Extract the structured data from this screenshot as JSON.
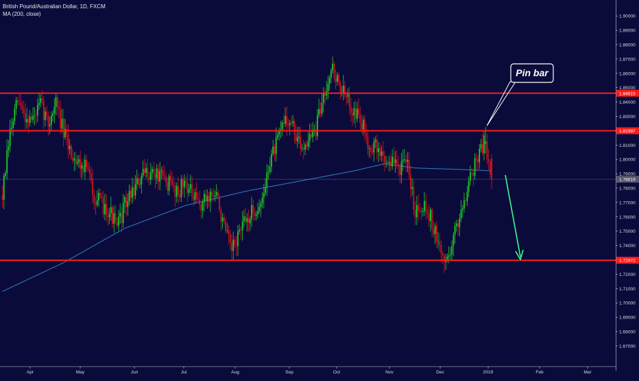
{
  "legend": {
    "symbol": "British Pound/Australian Dollar, 1D, FXCM",
    "indicator": "MA (200, close)"
  },
  "annotation": {
    "callout": "Pin bar"
  },
  "colors": {
    "background": "#0b0b3b",
    "up": "#21d624",
    "down": "#e0141a",
    "level": "#ff1a1a",
    "ma": "#2f7fc6",
    "arrow": "#3dff8a",
    "axis_text": "#d8d8e0"
  },
  "chart_data": {
    "type": "candlestick",
    "title": "British Pound/Australian Dollar, 1D, FXCM",
    "ylim": [
      1.662,
      1.908
    ],
    "y_ticks": [
      "1.90000",
      "1.89000",
      "1.88000",
      "1.87000",
      "1.86000",
      "1.85000",
      "1.84000",
      "1.83000",
      "1.82000",
      "1.81000",
      "1.80000",
      "1.79000",
      "1.78000",
      "1.77000",
      "1.76000",
      "1.75000",
      "1.74000",
      "1.73000",
      "1.72000",
      "1.71000",
      "1.70000",
      "1.69000",
      "1.68000",
      "1.67000"
    ],
    "x_ticks": [
      "Apr",
      "May",
      "Jun",
      "Jul",
      "Aug",
      "Sep",
      "Oct",
      "Nov",
      "Dec",
      "2019",
      "Feb",
      "Mar"
    ],
    "levels": [
      {
        "label": "1.84615",
        "value": 1.84615
      },
      {
        "label": "1.81997",
        "value": 1.81997
      },
      {
        "label": "1.72972",
        "value": 1.72972
      }
    ],
    "current_price": {
      "label": "1.78619",
      "value": 1.78619
    },
    "price_anchors": [
      [
        0,
        1.775
      ],
      [
        5,
        1.818
      ],
      [
        10,
        1.84
      ],
      [
        15,
        1.83
      ],
      [
        20,
        1.828
      ],
      [
        25,
        1.838
      ],
      [
        30,
        1.825
      ],
      [
        35,
        1.84
      ],
      [
        40,
        1.818
      ],
      [
        45,
        1.805
      ],
      [
        50,
        1.798
      ],
      [
        55,
        1.795
      ],
      [
        60,
        1.775
      ],
      [
        65,
        1.768
      ],
      [
        70,
        1.765
      ],
      [
        75,
        1.752
      ],
      [
        80,
        1.768
      ],
      [
        85,
        1.778
      ],
      [
        90,
        1.785
      ],
      [
        95,
        1.792
      ],
      [
        100,
        1.79
      ],
      [
        105,
        1.786
      ],
      [
        110,
        1.782
      ],
      [
        115,
        1.778
      ],
      [
        120,
        1.785
      ],
      [
        125,
        1.772
      ],
      [
        130,
        1.768
      ],
      [
        135,
        1.775
      ],
      [
        140,
        1.775
      ],
      [
        145,
        1.752
      ],
      [
        150,
        1.735
      ],
      [
        155,
        1.75
      ],
      [
        160,
        1.758
      ],
      [
        165,
        1.765
      ],
      [
        170,
        1.77
      ],
      [
        175,
        1.8
      ],
      [
        180,
        1.812
      ],
      [
        185,
        1.83
      ],
      [
        190,
        1.822
      ],
      [
        195,
        1.808
      ],
      [
        200,
        1.815
      ],
      [
        205,
        1.82
      ],
      [
        210,
        1.845
      ],
      [
        215,
        1.865
      ],
      [
        220,
        1.852
      ],
      [
        225,
        1.842
      ],
      [
        230,
        1.835
      ],
      [
        235,
        1.825
      ],
      [
        240,
        1.81
      ],
      [
        245,
        1.808
      ],
      [
        250,
        1.8
      ],
      [
        255,
        1.798
      ],
      [
        260,
        1.795
      ],
      [
        265,
        1.795
      ],
      [
        270,
        1.765
      ],
      [
        275,
        1.77
      ],
      [
        280,
        1.76
      ],
      [
        285,
        1.74
      ],
      [
        290,
        1.728
      ],
      [
        295,
        1.745
      ],
      [
        300,
        1.765
      ],
      [
        305,
        1.785
      ],
      [
        310,
        1.8
      ],
      [
        315,
        1.812
      ],
      [
        318,
        1.8
      ],
      [
        320,
        1.788
      ]
    ],
    "ma_anchors": [
      [
        0,
        1.708
      ],
      [
        40,
        1.728
      ],
      [
        80,
        1.752
      ],
      [
        120,
        1.768
      ],
      [
        160,
        1.778
      ],
      [
        200,
        1.786
      ],
      [
        230,
        1.792
      ],
      [
        250,
        1.797
      ],
      [
        270,
        1.794
      ],
      [
        300,
        1.793
      ],
      [
        320,
        1.792
      ]
    ],
    "last_candle_index": 320,
    "pin_bar_index": 316
  }
}
